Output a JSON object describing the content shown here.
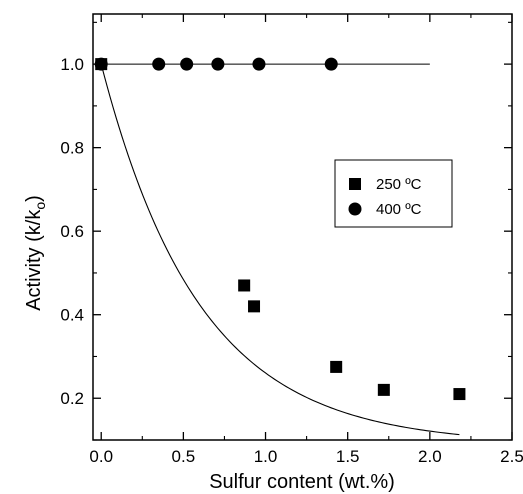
{
  "chart_data": {
    "type": "scatter",
    "xlabel": "Sulfur content (wt.%)",
    "ylabel": "Activity (k/k",
    "ylabel_sub": "o",
    "ylabel_close": ")",
    "xlim": [
      -0.05,
      2.5
    ],
    "ylim": [
      0.1,
      1.12
    ],
    "x_ticks": [
      0.0,
      0.5,
      1.0,
      1.5,
      2.0,
      2.5
    ],
    "x_tick_labels": [
      "0.0",
      "0.5",
      "1.0",
      "1.5",
      "2.0",
      "2.5"
    ],
    "y_ticks": [
      0.2,
      0.4,
      0.6,
      0.8,
      1.0
    ],
    "y_tick_labels": [
      "0.2",
      "0.4",
      "0.6",
      "0.8",
      "1.0"
    ],
    "legend_position": "right-middle",
    "series": [
      {
        "name": "250 ºC",
        "marker": "square",
        "color": "#000000",
        "points": [
          {
            "x": 0.0,
            "y": 1.0
          },
          {
            "x": 0.87,
            "y": 0.47
          },
          {
            "x": 0.93,
            "y": 0.42
          },
          {
            "x": 1.43,
            "y": 0.275
          },
          {
            "x": 1.72,
            "y": 0.22
          },
          {
            "x": 2.18,
            "y": 0.21
          }
        ],
        "fit": {
          "kind": "exponential-decay",
          "x_range": [
            0.0,
            2.18
          ],
          "y0": 1.0,
          "a": 0.089,
          "k": 1.67
        }
      },
      {
        "name": "400 ºC",
        "marker": "circle",
        "color": "#000000",
        "points": [
          {
            "x": 0.0,
            "y": 1.0
          },
          {
            "x": 0.35,
            "y": 1.0
          },
          {
            "x": 0.52,
            "y": 1.0
          },
          {
            "x": 0.71,
            "y": 1.0
          },
          {
            "x": 0.96,
            "y": 1.0
          },
          {
            "x": 1.4,
            "y": 1.0
          }
        ],
        "fit": {
          "kind": "constant",
          "x_range": [
            -0.05,
            2.0
          ],
          "value": 1.0
        }
      }
    ]
  }
}
